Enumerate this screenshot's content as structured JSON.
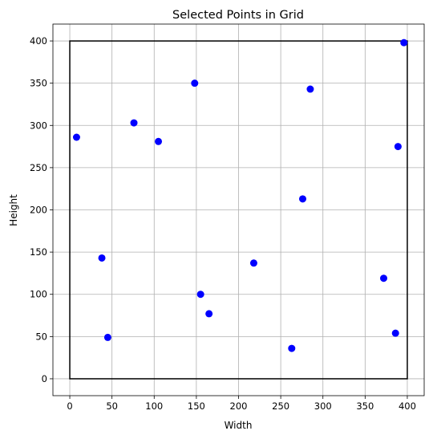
{
  "chart_data": {
    "type": "scatter",
    "title": "Selected Points in Grid",
    "xlabel": "Width",
    "ylabel": "Height",
    "xlim": [
      -20,
      420
    ],
    "ylim": [
      -20,
      420
    ],
    "xticks": [
      0,
      50,
      100,
      150,
      200,
      250,
      300,
      350,
      400
    ],
    "yticks": [
      0,
      50,
      100,
      150,
      200,
      250,
      300,
      350,
      400
    ],
    "grid": true,
    "boundary_rect": {
      "x0": 0,
      "y0": 0,
      "x1": 400,
      "y1": 400,
      "color": "#000000"
    },
    "series": [
      {
        "color": "#0000ff",
        "marker": "circle",
        "points": [
          {
            "x": 8,
            "y": 286
          },
          {
            "x": 76,
            "y": 303
          },
          {
            "x": 105,
            "y": 281
          },
          {
            "x": 148,
            "y": 350
          },
          {
            "x": 285,
            "y": 343
          },
          {
            "x": 396,
            "y": 398
          },
          {
            "x": 389,
            "y": 275
          },
          {
            "x": 276,
            "y": 213
          },
          {
            "x": 38,
            "y": 143
          },
          {
            "x": 218,
            "y": 137
          },
          {
            "x": 155,
            "y": 100
          },
          {
            "x": 372,
            "y": 119
          },
          {
            "x": 165,
            "y": 77
          },
          {
            "x": 45,
            "y": 49
          },
          {
            "x": 263,
            "y": 36
          },
          {
            "x": 386,
            "y": 54
          }
        ]
      }
    ]
  }
}
